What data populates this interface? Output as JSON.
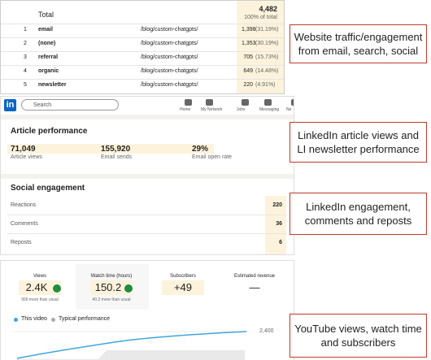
{
  "analytics": {
    "total_label": "Total",
    "total_value": "4,482",
    "total_share": "100% of total",
    "rows": [
      [
        "1",
        "email",
        "/blog/custom-chatgpts/",
        "1,398",
        "(31.19%)"
      ],
      [
        "2",
        "(none)",
        "/blog/custom-chatgpts/",
        "1,353",
        "(30.19%)"
      ],
      [
        "3",
        "referral",
        "/blog/custom-chatgpts/",
        "705",
        "(15.73%)"
      ],
      [
        "4",
        "organic",
        "/blog/custom-chatgpts/",
        "649",
        "(14.48%)"
      ],
      [
        "5",
        "newsletter",
        "/blog/custom-chatgpts/",
        "220",
        "(4.91%)"
      ]
    ],
    "callout": "Website traffic/engagement from email, search, social"
  },
  "linkedin": {
    "logo": "in",
    "search": "Search",
    "nav": [
      "Home",
      "My Network",
      "Jobs",
      "Messaging",
      "Ne"
    ],
    "article_title": "Article performance",
    "metrics": [
      {
        "value": "71,049",
        "label": "Article views"
      },
      {
        "value": "155,920",
        "label": "Email sends"
      },
      {
        "value": "29%",
        "label": "Email open rate"
      }
    ],
    "social_title": "Social engagement",
    "social": [
      [
        "Reactions",
        "220"
      ],
      [
        "Comments",
        "36"
      ],
      [
        "Reposts",
        "6"
      ]
    ],
    "callout_article": "LinkedIn article views and LI newsletter performance",
    "callout_social": "LinkedIn engagement, comments and reposts"
  },
  "youtube": {
    "cards": [
      {
        "title": "Views",
        "value": "2.4K",
        "note": "956 more than usual"
      },
      {
        "title": "Watch time (hours)",
        "value": "150.2",
        "note": "40.2 more than usual"
      },
      {
        "title": "Subscribers",
        "value": "+49"
      },
      {
        "title": "Estimated revenue",
        "value": "—"
      }
    ],
    "legend": [
      "This video",
      "Typical performance"
    ],
    "tick": "2,400",
    "callout": "YouTube views, watch time and subscribers"
  }
}
